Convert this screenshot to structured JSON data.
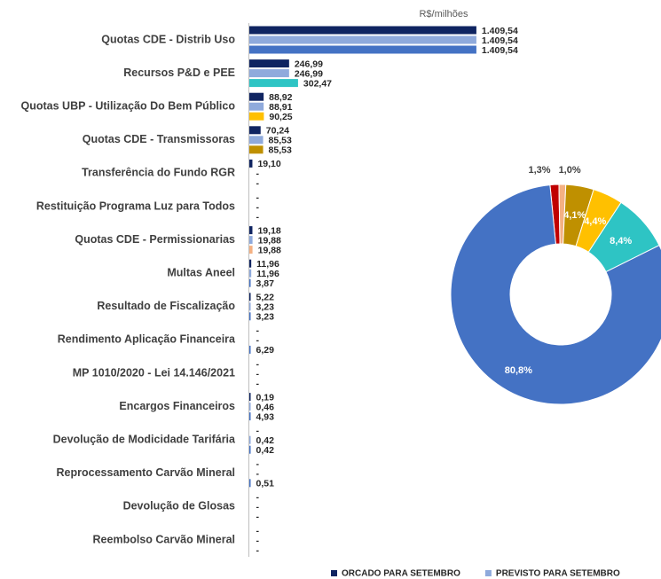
{
  "chart_data": [
    {
      "type": "hbar",
      "xlabel": "R$/milhões",
      "xlim": [
        0,
        1410
      ],
      "categories": [
        "Quotas CDE - Distrib Uso",
        "Recursos P&D e PEE",
        "Quotas UBP - Utilização Do Bem Público",
        "Quotas CDE - Transmissoras",
        "Transferência do Fundo RGR",
        "Restituição Programa Luz para Todos",
        "Quotas CDE - Permissionarias",
        "Multas Aneel",
        "Resultado de Fiscalização",
        "Rendimento Aplicação Financeira",
        "MP 1010/2020 - Lei 14.146/2021",
        "Encargos Financeiros",
        "Devolução de Modicidade Tarifária",
        "Reprocessamento Carvão Mineral",
        "Devolução de Glosas",
        "Reembolso Carvão Mineral"
      ],
      "series": [
        {
          "name": "ORCADO PARA SETEMBRO",
          "color": "#0f2461",
          "values": [
            1409.54,
            246.99,
            88.92,
            70.24,
            19.1,
            null,
            19.18,
            11.96,
            5.22,
            null,
            null,
            0.19,
            null,
            null,
            null,
            null
          ],
          "value_labels": [
            "1.409,54",
            "246,99",
            "88,92",
            "70,24",
            "19,10",
            "-",
            "19,18",
            "11,96",
            "5,22",
            "-",
            "-",
            "0,19",
            "-",
            "-",
            "-",
            "-"
          ]
        },
        {
          "name": "PREVISTO PARA SETEMBRO",
          "color": "#8faadc",
          "values": [
            1409.54,
            246.99,
            88.91,
            85.53,
            null,
            null,
            19.88,
            11.96,
            3.23,
            null,
            null,
            0.46,
            0.42,
            null,
            null,
            null
          ],
          "value_labels": [
            "1.409,54",
            "246,99",
            "88,91",
            "85,53",
            "-",
            "-",
            "19,88",
            "11,96",
            "3,23",
            "-",
            "-",
            "0,46",
            "0,42",
            "-",
            "-",
            "-"
          ]
        },
        {
          "colors": [
            "#4472c4",
            "#2ec4c4",
            "#ffc000",
            "#bf9000",
            "#4472c4",
            "#4472c4",
            "#f4b183",
            "#4472c4",
            "#4472c4",
            "#4472c4",
            "#4472c4",
            "#4472c4",
            "#4472c4",
            "#4472c4",
            "#4472c4",
            "#4472c4"
          ],
          "values": [
            1409.54,
            302.47,
            90.25,
            85.53,
            null,
            null,
            19.88,
            3.87,
            3.23,
            6.29,
            null,
            4.93,
            0.42,
            0.51,
            null,
            null
          ],
          "value_labels": [
            "1.409,54",
            "302,47",
            "90,25",
            "85,53",
            "-",
            "-",
            "19,88",
            "3,87",
            "3,23",
            "6,29",
            "-",
            "4,93",
            "0,42",
            "0,51",
            "-",
            "-"
          ]
        }
      ]
    },
    {
      "type": "donut",
      "values": [
        1.3,
        1.0,
        4.1,
        4.4,
        8.4,
        80.8
      ],
      "value_labels": [
        "1,3%",
        "1,0%",
        "4,1%",
        "4,4%",
        "8,4%",
        "80,8%"
      ],
      "colors": [
        "#c00000",
        "#f4b183",
        "#bf9000",
        "#ffc000",
        "#2ec4c4",
        "#4472c4"
      ]
    }
  ]
}
